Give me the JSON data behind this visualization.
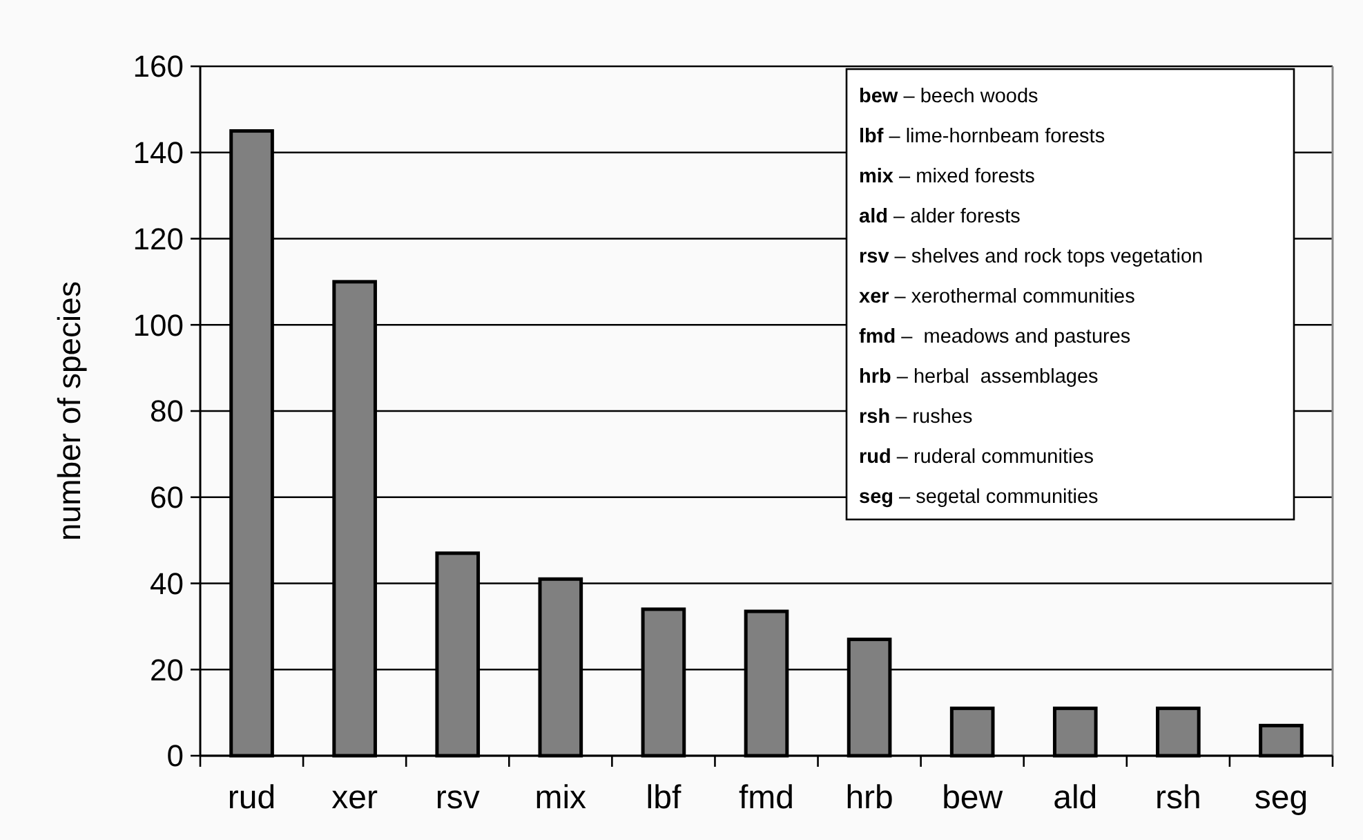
{
  "chart_data": {
    "type": "bar",
    "ylabel": "number of species",
    "categories": [
      "rud",
      "xer",
      "rsv",
      "mix",
      "lbf",
      "fmd",
      "hrb",
      "bew",
      "ald",
      "rsh",
      "seg"
    ],
    "values": [
      145,
      110,
      47,
      41,
      34,
      33.5,
      27,
      11,
      11,
      11,
      7
    ],
    "color": "#808080",
    "ylim": [
      0,
      160
    ],
    "yticks": [
      0,
      20,
      40,
      60,
      80,
      100,
      120,
      140,
      160
    ],
    "grid": "y",
    "annotations": [
      "bew – beech woods",
      "lbf – lime-hornbeam forests",
      "mix – mixed forests",
      "ald – alder forests",
      "rsv – shelves and rock tops vegetation",
      "xer – xerothermal communities",
      "fmd –  meadows and pastures",
      "hrb – herbal  assemblages",
      "rsh – rushes",
      "rud – ruderal communities",
      "seg – segetal communities"
    ]
  }
}
